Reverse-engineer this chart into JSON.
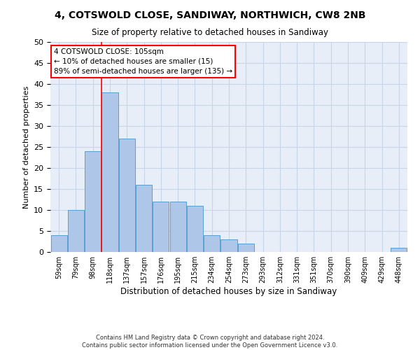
{
  "title": "4, COTSWOLD CLOSE, SANDIWAY, NORTHWICH, CW8 2NB",
  "subtitle": "Size of property relative to detached houses in Sandiway",
  "xlabel": "Distribution of detached houses by size in Sandiway",
  "ylabel": "Number of detached properties",
  "categories": [
    "59sqm",
    "79sqm",
    "98sqm",
    "118sqm",
    "137sqm",
    "157sqm",
    "176sqm",
    "195sqm",
    "215sqm",
    "234sqm",
    "254sqm",
    "273sqm",
    "293sqm",
    "312sqm",
    "331sqm",
    "351sqm",
    "370sqm",
    "390sqm",
    "409sqm",
    "429sqm",
    "448sqm"
  ],
  "values": [
    4,
    10,
    24,
    38,
    27,
    16,
    12,
    12,
    11,
    4,
    3,
    2,
    0,
    0,
    0,
    0,
    0,
    0,
    0,
    0,
    1
  ],
  "bar_color": "#aec6e8",
  "bar_edge_color": "#5a9fd4",
  "vline_x": 2.5,
  "vline_color": "red",
  "annotation_text": "4 COTSWOLD CLOSE: 105sqm\n← 10% of detached houses are smaller (15)\n89% of semi-detached houses are larger (135) →",
  "annotation_box_color": "white",
  "annotation_box_edge": "red",
  "ylim": [
    0,
    50
  ],
  "yticks": [
    0,
    5,
    10,
    15,
    20,
    25,
    30,
    35,
    40,
    45,
    50
  ],
  "footer": "Contains HM Land Registry data © Crown copyright and database right 2024.\nContains public sector information licensed under the Open Government Licence v3.0.",
  "bg_color": "#e8eef8",
  "grid_color": "#c8d4e8"
}
